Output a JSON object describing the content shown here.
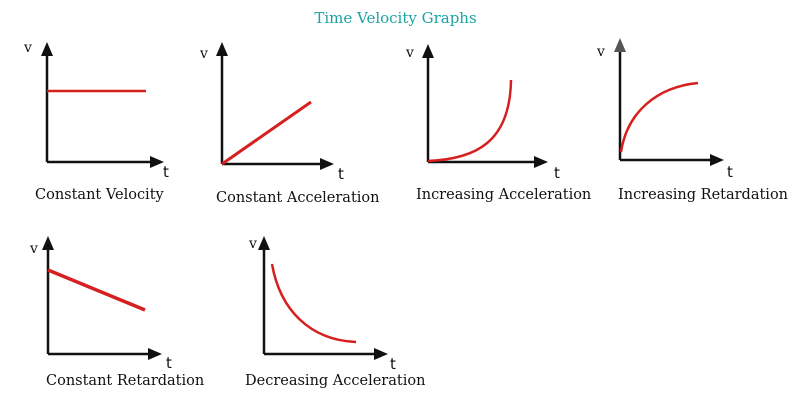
{
  "title": "Time Velocity Graphs",
  "colors": {
    "title": "#1aa3a3",
    "curve": "#d62020",
    "axis": "#111111"
  },
  "graphs": [
    {
      "id": "constant-velocity",
      "caption": "Constant Velocity",
      "y_label": "v",
      "x_label": "t"
    },
    {
      "id": "constant-acceleration",
      "caption": "Constant Acceleration",
      "y_label": "v",
      "x_label": "t"
    },
    {
      "id": "increasing-acceleration",
      "caption": "Increasing Acceleration",
      "y_label": "v",
      "x_label": "t"
    },
    {
      "id": "increasing-retardation",
      "caption": "Increasing Retardation",
      "y_label": "v",
      "x_label": "t"
    },
    {
      "id": "constant-retardation",
      "caption": "Constant Retardation",
      "y_label": "v",
      "x_label": "t"
    },
    {
      "id": "decreasing-acceleration",
      "caption": "Decreasing Acceleration",
      "y_label": "v",
      "x_label": "t"
    }
  ]
}
